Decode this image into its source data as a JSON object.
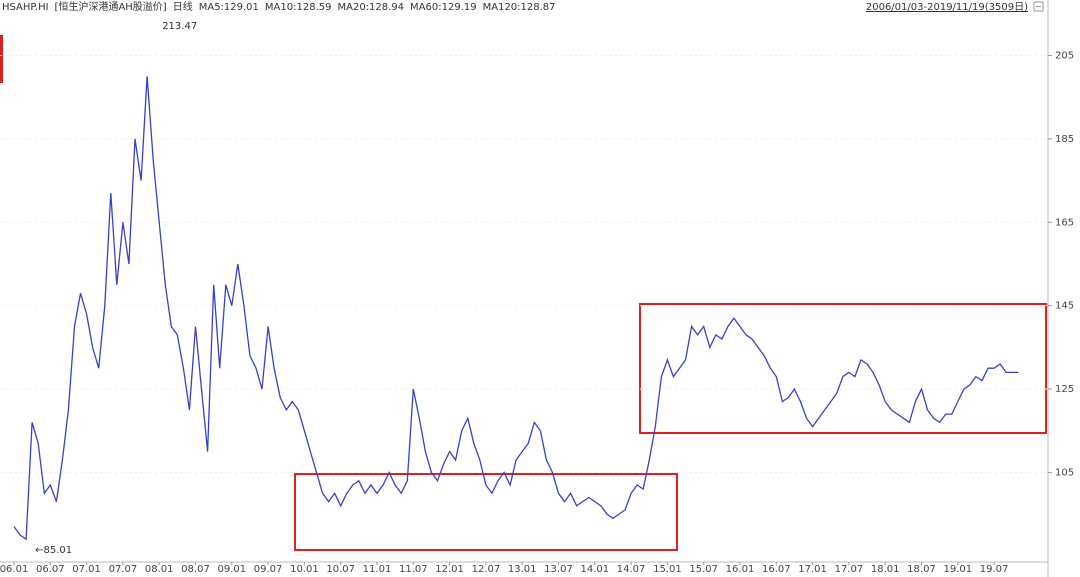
{
  "chart_data": {
    "type": "line",
    "header": [
      {
        "text": "HSAHP.HI",
        "color": "#333333"
      },
      {
        "text": "[恒生沪深港通AH股溢价]",
        "color": "#333333"
      },
      {
        "text": "日线",
        "color": "#e02020"
      },
      {
        "text": "MA5:129.01",
        "color": "#e02020"
      },
      {
        "text": "MA10:128.59",
        "color": "#3a8fd8"
      },
      {
        "text": "MA20:128.94",
        "color": "#2040e0"
      },
      {
        "text": "MA60:129.19",
        "color": "#18a8c8"
      },
      {
        "text": "MA120:128.87",
        "color": "#2aa02a"
      }
    ],
    "range_label": "2006/01/03-2019/11/19(3509日)",
    "annotations": [
      {
        "text": "213.47",
        "color": "#e02020",
        "index": 24,
        "value": 213.47
      },
      {
        "text": "←85.01",
        "color": "#2aa02a",
        "index": 3,
        "value": 85.01
      }
    ],
    "categories": [
      "06.01",
      null,
      null,
      null,
      null,
      null,
      "06.07",
      null,
      null,
      null,
      null,
      null,
      "07.01",
      null,
      null,
      null,
      null,
      null,
      "07.07",
      null,
      null,
      null,
      null,
      null,
      "08.01",
      null,
      null,
      null,
      null,
      null,
      "08.07",
      null,
      null,
      null,
      null,
      null,
      "09.01",
      null,
      null,
      null,
      null,
      null,
      "09.07",
      null,
      null,
      null,
      null,
      null,
      "10.01",
      null,
      null,
      null,
      null,
      null,
      "10.07",
      null,
      null,
      null,
      null,
      null,
      "11.01",
      null,
      null,
      null,
      null,
      null,
      "11.07",
      null,
      null,
      null,
      null,
      null,
      "12.01",
      null,
      null,
      null,
      null,
      null,
      "12.07",
      null,
      null,
      null,
      null,
      null,
      "13.01",
      null,
      null,
      null,
      null,
      null,
      "13.07",
      null,
      null,
      null,
      null,
      null,
      "14.01",
      null,
      null,
      null,
      null,
      null,
      "14.07",
      null,
      null,
      null,
      null,
      null,
      "15.01",
      null,
      null,
      null,
      null,
      null,
      "15.07",
      null,
      null,
      null,
      null,
      null,
      "16.01",
      null,
      null,
      null,
      null,
      null,
      "16.07",
      null,
      null,
      null,
      null,
      null,
      "17.01",
      null,
      null,
      null,
      null,
      null,
      "17.07",
      null,
      null,
      null,
      null,
      null,
      "18.01",
      null,
      null,
      null,
      null,
      null,
      "18.07",
      null,
      null,
      null,
      null,
      null,
      "19.01",
      null,
      null,
      null,
      null,
      null,
      "19.07",
      null,
      null,
      null,
      null
    ],
    "series": [
      {
        "name": "HSAHP.HI",
        "color": "#3a3fc8",
        "values": [
          92,
          90,
          89,
          117,
          112,
          100,
          102,
          98,
          108,
          120,
          140,
          148,
          143,
          135,
          130,
          145,
          172,
          150,
          165,
          155,
          185,
          175,
          200,
          180,
          165,
          150,
          140,
          138,
          130,
          120,
          140,
          125,
          110,
          150,
          130,
          150,
          145,
          155,
          145,
          133,
          130,
          125,
          140,
          130,
          123,
          120,
          122,
          120,
          115,
          110,
          105,
          100,
          98,
          100,
          97,
          100,
          102,
          103,
          100,
          102,
          100,
          102,
          105,
          102,
          100,
          103,
          125,
          118,
          110,
          105,
          103,
          107,
          110,
          108,
          115,
          118,
          112,
          108,
          102,
          100,
          103,
          105,
          102,
          108,
          110,
          112,
          117,
          115,
          108,
          105,
          100,
          98,
          100,
          97,
          98,
          99,
          98,
          97,
          95,
          94,
          95,
          96,
          100,
          102,
          101,
          108,
          116,
          128,
          132,
          128,
          130,
          132,
          140,
          138,
          140,
          135,
          138,
          137,
          140,
          142,
          140,
          138,
          137,
          135,
          133,
          130,
          128,
          122,
          123,
          125,
          122,
          118,
          116,
          118,
          120,
          122,
          124,
          128,
          129,
          128,
          132,
          131,
          129,
          126,
          122,
          120,
          119,
          118,
          117,
          122,
          125,
          120,
          118,
          117,
          119,
          119,
          122,
          125,
          126,
          128,
          127,
          130,
          130,
          131,
          129,
          129,
          129
        ]
      }
    ],
    "ylim": [
      84,
      214
    ],
    "yticks": [
      105,
      125,
      145,
      165,
      185,
      205
    ],
    "grid": true
  }
}
